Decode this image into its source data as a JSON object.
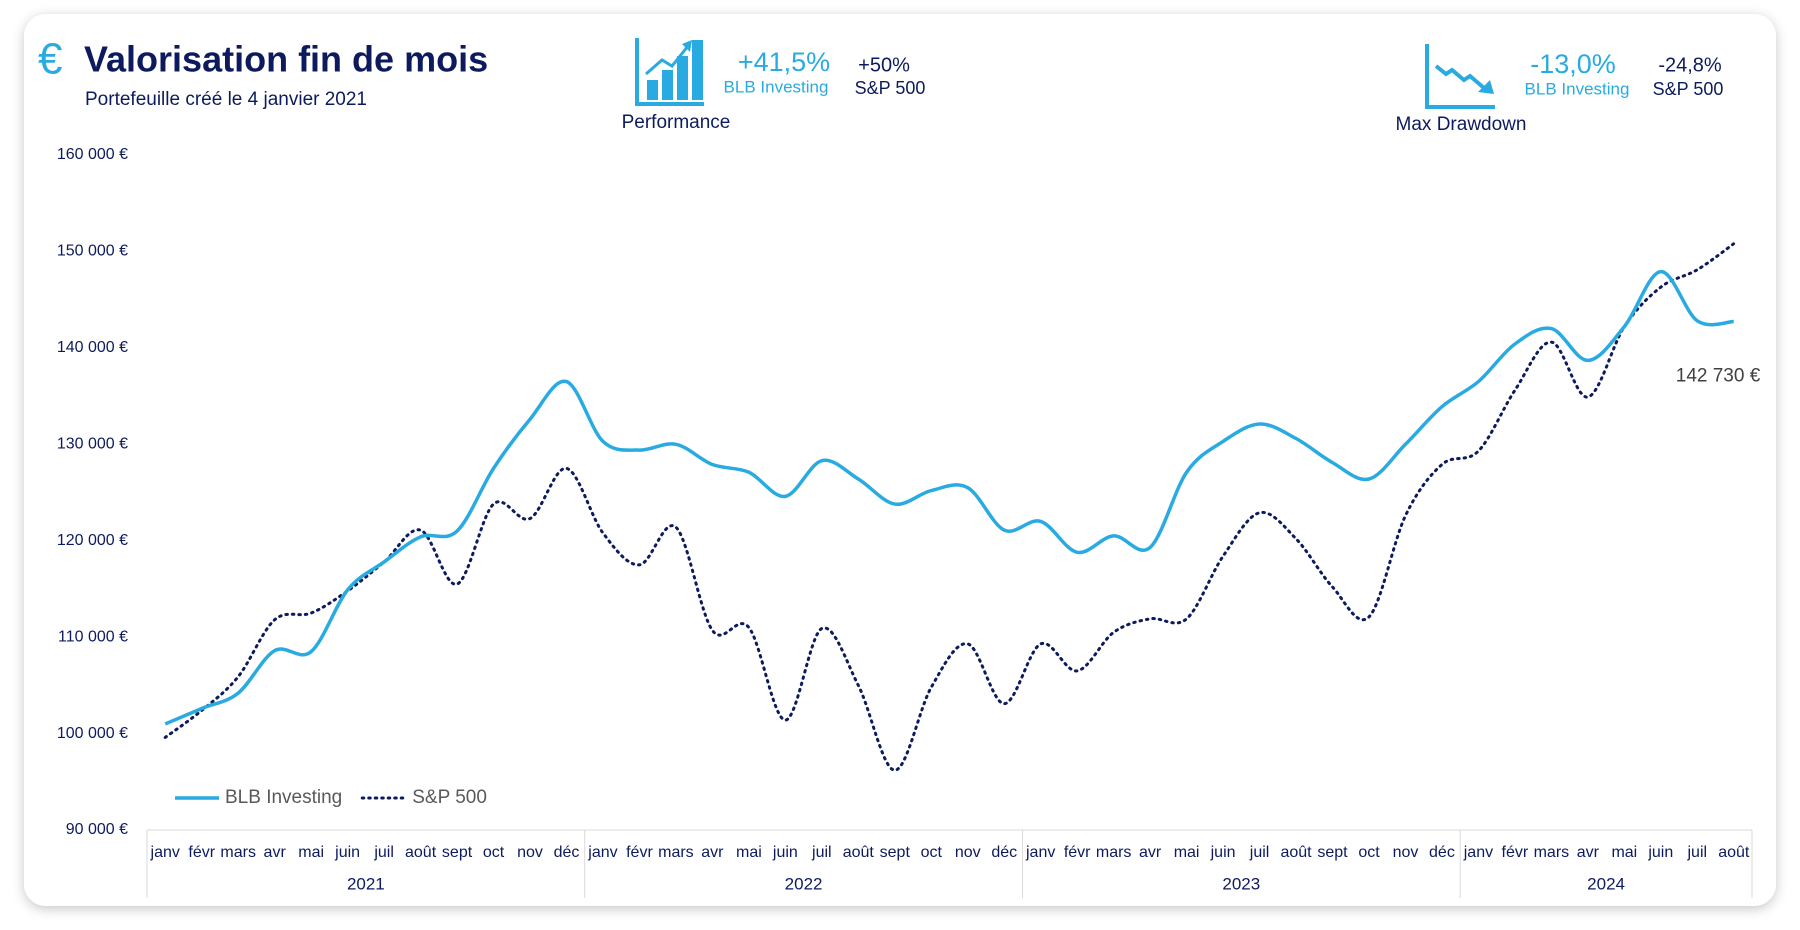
{
  "header": {
    "currency_symbol": "€",
    "title": "Valorisation fin de mois",
    "subtitle": "Portefeuille créé le 4 janvier 2021"
  },
  "kpis": {
    "performance": {
      "label": "Performance",
      "portfolio_value": "+41,5%",
      "portfolio_name": "BLB Investing",
      "benchmark_value": "+50%",
      "benchmark_name": "S&P 500"
    },
    "drawdown": {
      "label": "Max Drawdown",
      "portfolio_value": "-13,0%",
      "portfolio_name": "BLB Investing",
      "benchmark_value": "-24,8%",
      "benchmark_name": "S&P 500"
    }
  },
  "chart_data": {
    "type": "line",
    "groups": [
      {
        "label": "2021",
        "categories": [
          "janv",
          "févr",
          "mars",
          "avr",
          "mai",
          "juin",
          "juil",
          "août",
          "sept",
          "oct",
          "nov",
          "déc"
        ]
      },
      {
        "label": "2022",
        "categories": [
          "janv",
          "févr",
          "mars",
          "avr",
          "mai",
          "juin",
          "juil",
          "août",
          "sept",
          "oct",
          "nov",
          "déc"
        ]
      },
      {
        "label": "2023",
        "categories": [
          "janv",
          "févr",
          "mars",
          "avr",
          "mai",
          "juin",
          "juil",
          "août",
          "sept",
          "oct",
          "nov",
          "déc"
        ]
      },
      {
        "label": "2024",
        "categories": [
          "janv",
          "févr",
          "mars",
          "avr",
          "mai",
          "juin",
          "juil",
          "août"
        ]
      }
    ],
    "series": [
      {
        "name": "BLB Investing",
        "color": "#29abe2",
        "dash": "solid",
        "values": [
          101000,
          102600,
          104200,
          108600,
          108500,
          114900,
          117800,
          120400,
          121000,
          127500,
          132600,
          136500,
          130300,
          129400,
          130000,
          127900,
          127100,
          124600,
          128300,
          126400,
          123800,
          125200,
          125500,
          121100,
          122000,
          118800,
          120500,
          119300,
          127100,
          130300,
          132100,
          130600,
          128100,
          126400,
          130000,
          133900,
          136500,
          140400,
          142000,
          138700,
          142200,
          147900,
          142800,
          142730
        ],
        "value_labels": [
          null,
          null,
          null,
          null,
          null,
          null,
          null,
          null,
          null,
          null,
          null,
          null,
          null,
          null,
          null,
          null,
          null,
          null,
          null,
          null,
          null,
          null,
          null,
          null,
          null,
          null,
          null,
          null,
          null,
          null,
          null,
          null,
          null,
          null,
          null,
          null,
          null,
          null,
          null,
          null,
          null,
          null,
          null,
          "142 730 €"
        ]
      },
      {
        "name": "S&P 500",
        "color": "#0d1b5e",
        "dash": "dotted",
        "values": [
          99600,
          102400,
          105900,
          111800,
          112500,
          114800,
          117800,
          121100,
          115500,
          123800,
          122300,
          127500,
          120800,
          117500,
          121400,
          110700,
          111000,
          101400,
          110900,
          105000,
          96200,
          104800,
          109300,
          103100,
          109300,
          106500,
          110500,
          111900,
          111900,
          118400,
          122900,
          120200,
          115200,
          112100,
          122600,
          127900,
          129300,
          135600,
          140600,
          134900,
          142200,
          146300,
          148100,
          150800
        ]
      }
    ],
    "ylim": [
      90000,
      160000
    ],
    "yticks": [
      {
        "value": 90000,
        "label": "90 000 €"
      },
      {
        "value": 100000,
        "label": "100 000 €"
      },
      {
        "value": 110000,
        "label": "110 000 €"
      },
      {
        "value": 120000,
        "label": "120 000 €"
      },
      {
        "value": 130000,
        "label": "130 000 €"
      },
      {
        "value": 140000,
        "label": "140 000 €"
      },
      {
        "value": 150000,
        "label": "150 000 €"
      },
      {
        "value": 160000,
        "label": "160 000 €"
      }
    ],
    "grid": false,
    "legend": "bottom-left"
  }
}
